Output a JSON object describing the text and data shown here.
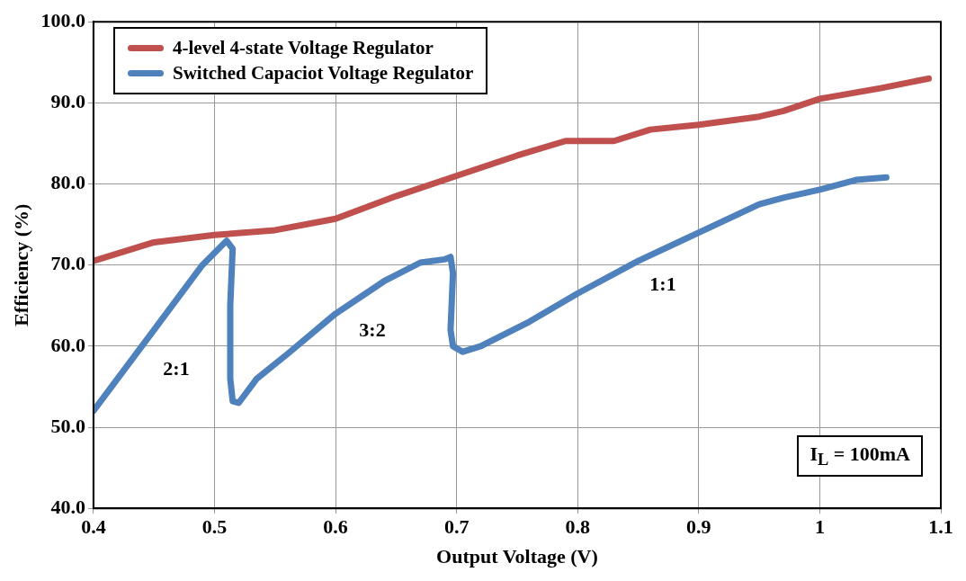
{
  "chart_data": {
    "type": "line",
    "xlabel": "Output Voltage (V)",
    "ylabel": "Efficiency (%)",
    "xlim": [
      0.4,
      1.1
    ],
    "xticks": [
      0.4,
      0.5,
      0.6,
      0.7,
      0.8,
      0.9,
      1,
      1.1
    ],
    "ylim": [
      40,
      100
    ],
    "yticks": [
      {
        "value": 40,
        "label": "40.0"
      },
      {
        "value": 50,
        "label": "50.0"
      },
      {
        "value": 60,
        "label": "60.0"
      },
      {
        "value": 70,
        "label": "70.0"
      },
      {
        "value": 80,
        "label": "80.0"
      },
      {
        "value": 90,
        "label": "90.0"
      },
      {
        "value": 100,
        "label": "100.0"
      }
    ],
    "grid": true,
    "legend": "top left",
    "marker": "none",
    "line_style": "solid",
    "series": [
      {
        "name": "4-level 4-state Voltage Regulator",
        "color": "#c0504d",
        "x": [
          0.4,
          0.45,
          0.5,
          0.55,
          0.6,
          0.65,
          0.7,
          0.75,
          0.79,
          0.83,
          0.86,
          0.9,
          0.95,
          0.97,
          1.0,
          1.05,
          1.09
        ],
        "values": [
          70.5,
          72.8,
          73.7,
          74.3,
          75.7,
          78.5,
          81,
          83.5,
          85.3,
          85.3,
          86.7,
          87.3,
          88.3,
          89,
          90.5,
          91.8,
          93
        ]
      },
      {
        "name": "Switched Capaciot Voltage Regulator",
        "color": "#4f81bd",
        "x": [
          0.4,
          0.45,
          0.49,
          0.51,
          0.515,
          0.513,
          0.513,
          0.515,
          0.52,
          0.535,
          0.56,
          0.6,
          0.64,
          0.67,
          0.69,
          0.695,
          0.697,
          0.695,
          0.697,
          0.705,
          0.72,
          0.76,
          0.8,
          0.85,
          0.9,
          0.95,
          0.97,
          1.0,
          1.03,
          1.055
        ],
        "values": [
          52,
          62,
          70,
          73,
          72,
          65,
          56,
          53.2,
          53,
          56,
          59,
          64,
          68,
          70.3,
          70.7,
          71,
          69,
          62,
          60,
          59.3,
          60,
          63,
          66.5,
          70.5,
          74,
          77.5,
          78.3,
          79.3,
          80.5,
          80.8
        ]
      }
    ],
    "annotations": [
      "2:1",
      "3:2",
      "1:1",
      "I$_{L}$ = 100mA"
    ]
  }
}
